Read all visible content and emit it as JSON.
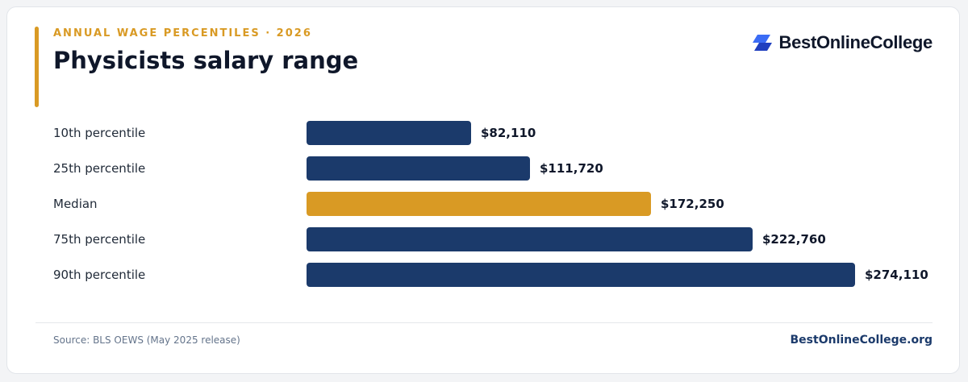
{
  "header": {
    "eyebrow": "ANNUAL WAGE PERCENTILES · 2026",
    "title": "Physicists salary range"
  },
  "logo": {
    "text": "BestOnlineCollege",
    "icon": "brand-parallelogram-icon",
    "icon_color_dark": "#1f3fbf",
    "icon_color_light": "#3b6cf5"
  },
  "chart_data": {
    "type": "bar",
    "orientation": "horizontal",
    "title": "Physicists salary range",
    "subtitle": "ANNUAL WAGE PERCENTILES · 2026",
    "categories": [
      "10th percentile",
      "25th percentile",
      "Median",
      "75th percentile",
      "90th percentile"
    ],
    "values": [
      82110,
      111720,
      172250,
      222760,
      274110
    ],
    "value_labels": [
      "$82,110",
      "$111,720",
      "$172,250",
      "$222,760",
      "$274,110"
    ],
    "highlight_index": 2,
    "xlim": [
      0,
      274110
    ],
    "grid": false,
    "legend": "none",
    "colors": {
      "bar": "#1b3a6b",
      "highlight": "#d99a24"
    }
  },
  "footer": {
    "source": "Source: BLS OEWS (May 2025 release)",
    "site": "BestOnlineCollege.org"
  }
}
